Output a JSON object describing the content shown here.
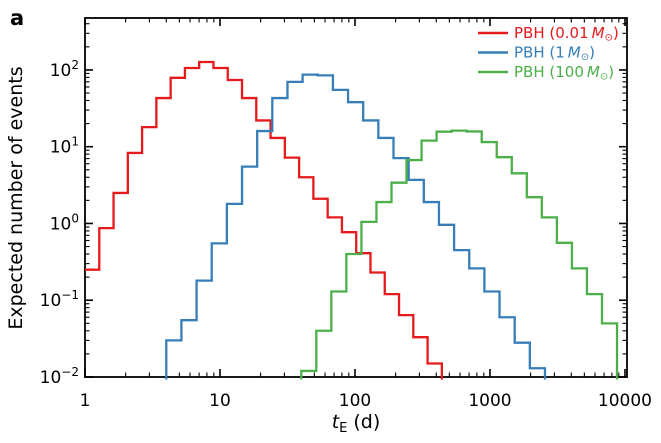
{
  "panel_label": "a",
  "chart_data": {
    "type": "step-histogram",
    "xscale": "log",
    "yscale": "log",
    "xlim": [
      1,
      10350
    ],
    "ylim": [
      0.01,
      475
    ],
    "xlabel": "tE (d)",
    "xlabel_parts": {
      "symbol": "t",
      "sub": "E",
      "unit": " (d)"
    },
    "ylabel": "Expected number of events",
    "x_ticks": [
      1,
      10,
      100,
      1000,
      10000
    ],
    "x_tick_labels": [
      "1",
      "10",
      "100",
      "1000",
      "10000"
    ],
    "y_ticks": [
      100,
      10,
      1,
      0.1,
      0.01
    ],
    "y_tick_base": "10",
    "y_tick_exponents": [
      "2",
      "1",
      "0",
      "−1",
      "−2"
    ],
    "grid": false,
    "legend_position": "upper-right",
    "series": [
      {
        "name": "pbh-0p01-msun",
        "label": "PBH (0.01 M⊙)",
        "legend": {
          "pre": "PBH (0.01 ",
          "symbol": "M",
          "sub": "⊙",
          "post": ")"
        },
        "color": "#e41a1c",
        "t_start": 1.0,
        "t_end": 440,
        "bins": 25,
        "values": [
          0.25,
          0.87,
          2.5,
          8.3,
          18,
          43,
          79,
          106,
          127,
          106,
          74,
          43,
          22,
          13,
          7.2,
          4.0,
          2.1,
          1.2,
          0.77,
          0.41,
          0.23,
          0.12,
          0.064,
          0.033,
          0.015
        ]
      },
      {
        "name": "pbh-1-msun",
        "label": "PBH (1 M⊙)",
        "legend": {
          "pre": "PBH (1 ",
          "symbol": "M",
          "sub": "⊙",
          "post": ")"
        },
        "color": "#377eb8",
        "t_start": 4.0,
        "t_end": 2555,
        "bins": 25,
        "values": [
          0.03,
          0.055,
          0.18,
          0.55,
          1.8,
          5.5,
          16,
          43,
          70,
          87,
          85,
          55,
          38,
          22,
          13,
          7.1,
          3.7,
          1.9,
          0.96,
          0.45,
          0.26,
          0.13,
          0.06,
          0.028,
          0.013
        ]
      },
      {
        "name": "pbh-100-msun",
        "label": "PBH (100 M⊙)",
        "legend": {
          "pre": "PBH (100 ",
          "symbol": "M",
          "sub": "⊙",
          "post": ")"
        },
        "color": "#4daf4a",
        "t_start": 40,
        "t_end": 8730,
        "bins": 21,
        "values": [
          0.012,
          0.04,
          0.13,
          0.4,
          1.05,
          1.9,
          3.4,
          6.7,
          12,
          15.7,
          16.2,
          15.8,
          11.5,
          7.3,
          4.5,
          2.2,
          1.2,
          0.56,
          0.26,
          0.12,
          0.05
        ]
      }
    ]
  }
}
